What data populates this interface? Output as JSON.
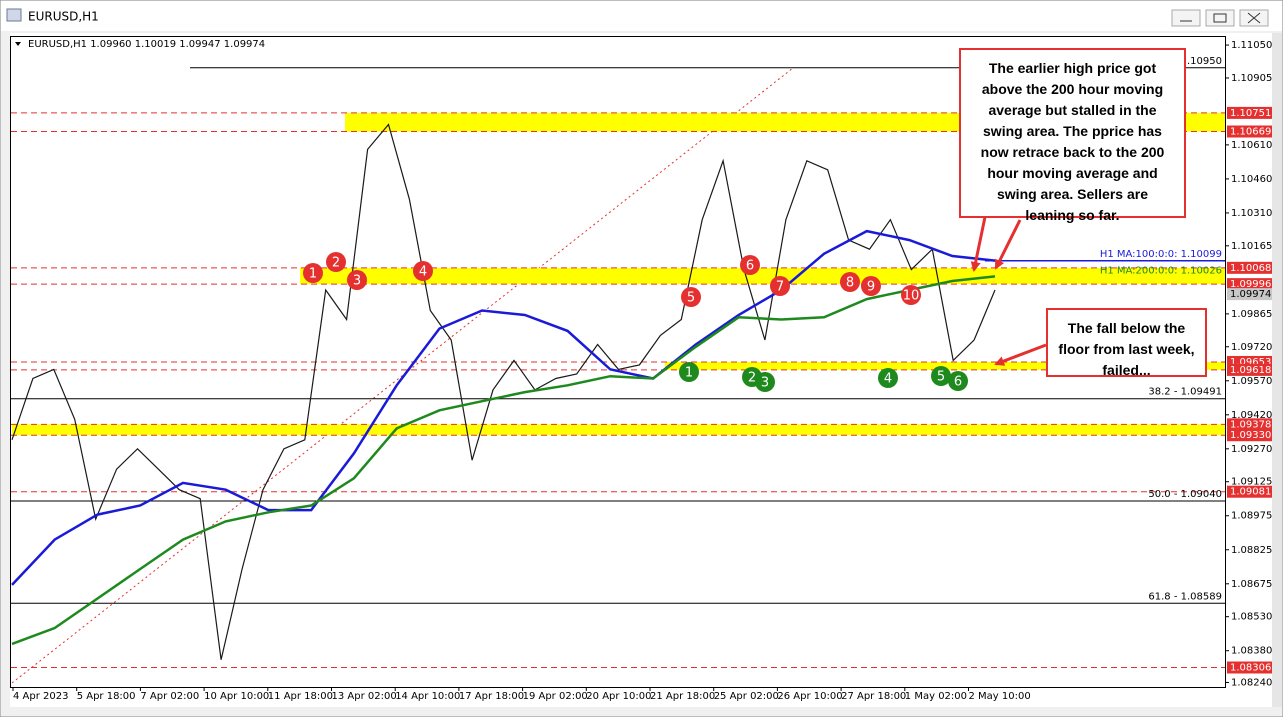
{
  "window": {
    "title": "EURUSD,H1"
  },
  "chart_data": {
    "type": "line",
    "symbol_info": "EURUSD,H1  1.09960 1.10019 1.09947 1.09974",
    "ylim": [
      1.0822,
      1.1109
    ],
    "yticks": [
      {
        "value": 1.1105,
        "label": "1.11050"
      },
      {
        "value": 1.10905,
        "label": "1.10905"
      },
      {
        "value": 1.1061,
        "label": "1.10610"
      },
      {
        "value": 1.1046,
        "label": "1.10460"
      },
      {
        "value": 1.1031,
        "label": "1.10310"
      },
      {
        "value": 1.10165,
        "label": "1.10165"
      },
      {
        "value": 1.09865,
        "label": "1.09865"
      },
      {
        "value": 1.0972,
        "label": "1.09720"
      },
      {
        "value": 1.0957,
        "label": "1.09570"
      },
      {
        "value": 1.0942,
        "label": "1.09420"
      },
      {
        "value": 1.0927,
        "label": "1.09270"
      },
      {
        "value": 1.09125,
        "label": "1.09125"
      },
      {
        "value": 1.08975,
        "label": "1.08975"
      },
      {
        "value": 1.08825,
        "label": "1.08825"
      },
      {
        "value": 1.08675,
        "label": "1.08675"
      },
      {
        "value": 1.0853,
        "label": "1.08530"
      },
      {
        "value": 1.0838,
        "label": "1.08380"
      },
      {
        "value": 1.0824,
        "label": "1.08240"
      }
    ],
    "xtick_labels": [
      "4 Apr 2023",
      "5 Apr 18:00",
      "7 Apr 02:00",
      "10 Apr 10:00",
      "11 Apr 18:00",
      "13 Apr 02:00",
      "14 Apr 10:00",
      "17 Apr 18:00",
      "19 Apr 02:00",
      "20 Apr 10:00",
      "21 Apr 18:00",
      "25 Apr 02:00",
      "26 Apr 10:00",
      "27 Apr 18:00",
      "1 May 02:00",
      "2 May 10:00"
    ],
    "series": [
      {
        "name": "EURUSD",
        "color": "#1a1a1a",
        "values": [
          1.0931,
          1.0958,
          1.0962,
          1.094,
          1.0896,
          1.0918,
          1.0927,
          1.0918,
          1.0909,
          1.0905,
          1.0834,
          1.0874,
          1.0909,
          1.0927,
          1.0931,
          1.0997,
          1.0984,
          1.1059,
          1.107,
          1.1037,
          1.0988,
          1.0975,
          1.0922,
          1.0953,
          1.0966,
          1.0953,
          1.0958,
          1.096,
          1.0973,
          1.0962,
          1.0964,
          1.0977,
          1.0984,
          1.1028,
          1.1054,
          1.1006,
          1.0975,
          1.1028,
          1.1054,
          1.105,
          1.1019,
          1.1015,
          1.1028,
          1.1006,
          1.1015,
          1.0966,
          1.0975,
          1.0997
        ]
      },
      {
        "name": "H1 MA:100:0:0",
        "color": "#1a1ad8",
        "values": [
          1.0867,
          1.0887,
          1.0898,
          1.0902,
          1.0912,
          1.0909,
          1.09,
          1.09,
          1.0925,
          1.0955,
          1.098,
          1.0988,
          1.0986,
          1.0979,
          1.0962,
          1.0958,
          1.0973,
          1.0986,
          1.0997,
          1.1013,
          1.1023,
          1.1019,
          1.1012,
          1.101
        ]
      },
      {
        "name": "H1 MA:200:0:0",
        "color": "#1e8a1e",
        "values": [
          1.0841,
          1.0848,
          1.0861,
          1.0874,
          1.0887,
          1.0895,
          1.0899,
          1.0902,
          1.0914,
          1.0936,
          1.0944,
          1.0948,
          1.0952,
          1.0955,
          1.0959,
          1.0958,
          1.0972,
          1.0985,
          1.0984,
          1.0985,
          1.0993,
          1.0997,
          1.1001,
          1.1003
        ]
      }
    ],
    "ma_labels": [
      {
        "value": 1.10099,
        "label": "H1 MA:100:0:0: 1.10099"
      },
      {
        "value": 1.10026,
        "label": "H1 MA:200:0:0: 1.10026"
      }
    ],
    "zones": [
      {
        "from": 1.10669,
        "to": 1.10751,
        "color": "#ffff00"
      },
      {
        "from": 1.09996,
        "to": 1.10068,
        "color": "#ffff00"
      },
      {
        "from": 1.09618,
        "to": 1.09653,
        "color": "#ffff00"
      },
      {
        "from": 1.0933,
        "to": 1.09378,
        "color": "#ffff00"
      }
    ],
    "levels": [
      {
        "value": 1.10751,
        "label": "1.10751"
      },
      {
        "value": 1.10669,
        "label": "1.10669"
      },
      {
        "value": 1.10068,
        "label": "1.10068"
      },
      {
        "value": 1.09996,
        "label": "1.09996"
      },
      {
        "value": 1.09653,
        "label": "1.09653"
      },
      {
        "value": 1.09618,
        "label": "1.09618"
      },
      {
        "value": 1.09378,
        "label": "1.09378"
      },
      {
        "value": 1.0933,
        "label": "1.09330"
      },
      {
        "value": 1.09081,
        "label": "1.09081"
      },
      {
        "value": 1.08306,
        "label": "1.08306"
      }
    ],
    "level_color": "#e53030",
    "current_price": {
      "value": 1.09974,
      "label": "1.09974"
    },
    "fib_levels": [
      {
        "value": 1.1095,
        "label": "-1.10950"
      },
      {
        "value": 1.09491,
        "label": "38.2 - 1.09491"
      },
      {
        "value": 1.0904,
        "label": "50.0 - 1.09040"
      },
      {
        "value": 1.08589,
        "label": "61.8 - 1.08589"
      }
    ],
    "resistance_markers": [
      "1",
      "2",
      "3",
      "4",
      "5",
      "6",
      "7",
      "8",
      "9",
      "10"
    ],
    "support_markers": [
      "1",
      "2",
      "3",
      "4",
      "5",
      "6"
    ],
    "annotations": [
      "The earlier high price got above the 200 hour moving average but stalled in the swing area. The pprice has now retrace back to the 200 hour moving average and swing area. Sellers are leaning so far.",
      "The fall below the floor from last week, failed..."
    ]
  }
}
